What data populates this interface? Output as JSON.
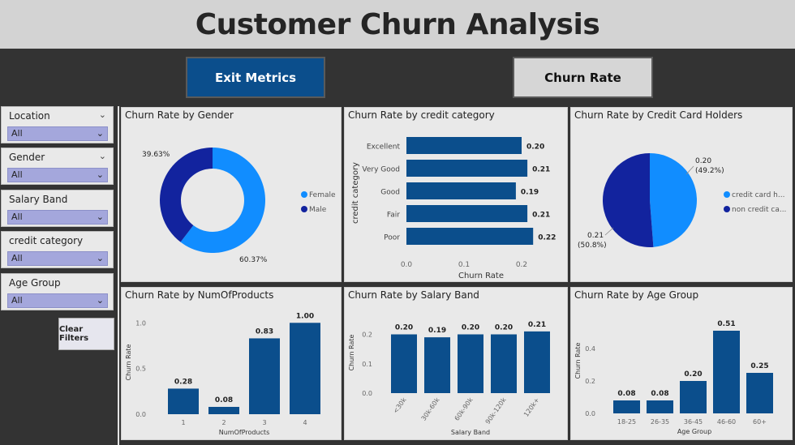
{
  "header": {
    "title": "Customer Churn Analysis"
  },
  "nav": {
    "exit_label": "Exit Metrics",
    "churn_label": "Churn Rate"
  },
  "slicers": [
    {
      "title": "Location",
      "value": "All"
    },
    {
      "title": "Gender",
      "value": "All"
    },
    {
      "title": "Salary Band",
      "value": "All"
    },
    {
      "title": "credit category",
      "value": "All"
    },
    {
      "title": "Age Group",
      "value": "All"
    }
  ],
  "clear_filters_label": "Clear Filters",
  "colors": {
    "dark_blue": "#0b4e8c",
    "navy": "#12239e",
    "light_blue": "#118dff",
    "slicer_fill": "#a4a7dc"
  },
  "panels": {
    "gender": {
      "title": "Churn Rate by Gender"
    },
    "credit": {
      "title": "Churn Rate by credit category"
    },
    "cardholders": {
      "title": "Churn Rate by Credit Card Holders"
    },
    "products": {
      "title": "Churn Rate by NumOfProducts"
    },
    "salary": {
      "title": "Churn Rate by Salary Band"
    },
    "age": {
      "title": "Churn Rate by Age Group"
    }
  },
  "chart_data": [
    {
      "id": "gender",
      "type": "pie",
      "title": "Churn Rate by Gender",
      "labels": [
        "Female",
        "Male"
      ],
      "values": [
        60.37,
        39.63
      ],
      "data_labels": [
        "60.37%",
        "39.63%"
      ],
      "colors": [
        "#118dff",
        "#12239e"
      ],
      "legend": "right"
    },
    {
      "id": "credit",
      "type": "bar",
      "orientation": "horizontal",
      "title": "Churn Rate by credit category",
      "categories": [
        "Excellent",
        "Very Good",
        "Good",
        "Fair",
        "Poor"
      ],
      "values": [
        0.2,
        0.21,
        0.19,
        0.21,
        0.22
      ],
      "data_labels": [
        "0.20",
        "0.21",
        "0.19",
        "0.21",
        "0.22"
      ],
      "xlabel": "Churn Rate",
      "ylabel": "credit category",
      "xlim": [
        0,
        0.25
      ],
      "xticks": [
        "0.0",
        "0.1",
        "0.2"
      ],
      "xtick_values": [
        0,
        0.1,
        0.2
      ]
    },
    {
      "id": "cardholders",
      "type": "pie",
      "title": "Churn Rate by Credit Card Holders",
      "labels": [
        "credit card h...",
        "non credit ca..."
      ],
      "values": [
        0.2,
        0.21
      ],
      "data_labels": [
        "0.20",
        "(49.2%)",
        "0.21",
        "(50.8%)"
      ],
      "colors": [
        "#118dff",
        "#12239e"
      ],
      "legend": "right"
    },
    {
      "id": "products",
      "type": "bar",
      "title": "Churn Rate by NumOfProducts",
      "categories": [
        "1",
        "2",
        "3",
        "4"
      ],
      "values": [
        0.28,
        0.08,
        0.83,
        1.0
      ],
      "data_labels": [
        "0.28",
        "0.08",
        "0.83",
        "1.00"
      ],
      "xlabel": "NumOfProducts",
      "ylabel": "Churn Rate",
      "ylim": [
        0,
        1.1
      ],
      "yticks": [
        "0.0",
        "0.5",
        "1.0"
      ],
      "ytick_values": [
        0,
        0.5,
        1.0
      ]
    },
    {
      "id": "salary",
      "type": "bar",
      "title": "Churn Rate by Salary Band",
      "categories": [
        "<30k",
        "30k-60k",
        "60k-90k",
        "90k-120k",
        "120k+"
      ],
      "values": [
        0.2,
        0.19,
        0.2,
        0.2,
        0.21
      ],
      "data_labels": [
        "0.20",
        "0.19",
        "0.20",
        "0.20",
        "0.21"
      ],
      "xlabel": "Salary Band",
      "ylabel": "Churn Rate",
      "ylim": [
        0,
        0.24
      ],
      "yticks": [
        "0.0",
        "0.1",
        "0.2"
      ],
      "ytick_values": [
        0,
        0.1,
        0.2
      ]
    },
    {
      "id": "age",
      "type": "bar",
      "title": "Churn Rate by Age Group",
      "categories": [
        "18-25",
        "26-35",
        "36-45",
        "46-60",
        "60+"
      ],
      "values": [
        0.08,
        0.08,
        0.2,
        0.51,
        0.25
      ],
      "data_labels": [
        "0.08",
        "0.08",
        "0.20",
        "0.51",
        "0.25"
      ],
      "xlabel": "Age Group",
      "ylabel": "Churn Rate",
      "ylim": [
        0,
        0.55
      ],
      "yticks": [
        "0.0",
        "0.2",
        "0.4"
      ],
      "ytick_values": [
        0,
        0.2,
        0.4
      ]
    }
  ]
}
